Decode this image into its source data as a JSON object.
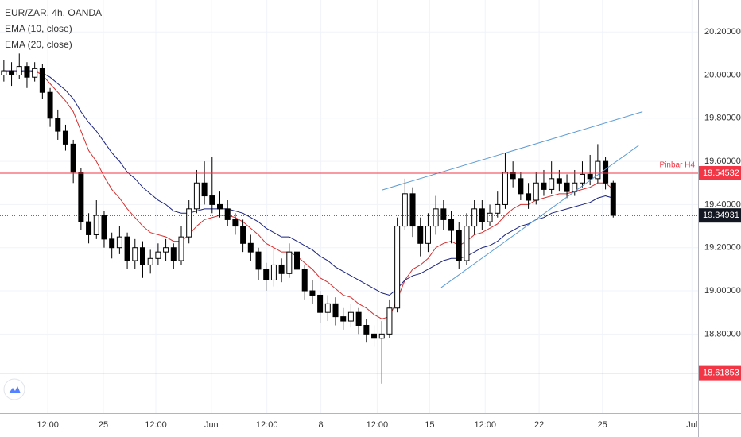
{
  "chart_data": {
    "type": "candlestick",
    "title": "EUR/ZAR, 4h, OANDA",
    "up_color": "#ffffff",
    "down_color": "#000000",
    "outline_color": "#000000",
    "candles": {
      "open": [
        20.0,
        20.02,
        20.0,
        20.04,
        19.99,
        20.03,
        19.92,
        19.8,
        19.74,
        19.68,
        19.55,
        19.32,
        19.26,
        19.35,
        19.24,
        19.2,
        19.25,
        19.14,
        19.2,
        19.12,
        19.15,
        19.18,
        19.2,
        19.14,
        19.25,
        19.38,
        19.5,
        19.44,
        19.4,
        19.38,
        19.33,
        19.3,
        19.22,
        19.18,
        19.1,
        19.05,
        19.12,
        19.08,
        19.18,
        19.1,
        19.0,
        18.98,
        18.9,
        18.94,
        18.88,
        18.86,
        18.9,
        18.84,
        18.8,
        18.78,
        18.8,
        18.92,
        19.3,
        19.45,
        19.3,
        19.22,
        19.3,
        19.38,
        19.33,
        19.28,
        19.14,
        19.3,
        19.38,
        19.32,
        19.36,
        19.4,
        19.55,
        19.52,
        19.45,
        19.42,
        19.5,
        19.47,
        19.52,
        19.5,
        19.46,
        19.5,
        19.54,
        19.52,
        19.6,
        19.5
      ],
      "high": [
        20.07,
        20.06,
        20.1,
        20.06,
        20.06,
        20.05,
        19.94,
        19.84,
        19.77,
        19.7,
        19.57,
        19.36,
        19.42,
        19.37,
        19.27,
        19.3,
        19.27,
        19.24,
        19.23,
        19.19,
        19.22,
        19.24,
        19.22,
        19.3,
        19.42,
        19.56,
        19.6,
        19.62,
        19.46,
        19.42,
        19.36,
        19.33,
        19.26,
        19.2,
        19.13,
        19.2,
        19.15,
        19.22,
        19.2,
        19.12,
        19.05,
        19.0,
        18.98,
        18.97,
        18.92,
        18.94,
        18.92,
        18.87,
        18.84,
        18.86,
        18.96,
        19.34,
        19.52,
        19.48,
        19.34,
        19.36,
        19.44,
        19.42,
        19.37,
        19.32,
        19.36,
        19.42,
        19.42,
        19.4,
        19.46,
        19.64,
        19.6,
        19.55,
        19.5,
        19.55,
        19.56,
        19.6,
        19.56,
        19.54,
        19.56,
        19.6,
        19.63,
        19.68,
        19.62,
        19.51
      ],
      "low": [
        19.97,
        19.95,
        19.98,
        19.94,
        19.97,
        19.89,
        19.76,
        19.7,
        19.65,
        19.5,
        19.28,
        19.22,
        19.24,
        19.2,
        19.15,
        19.17,
        19.1,
        19.1,
        19.06,
        19.08,
        19.12,
        19.14,
        19.1,
        19.12,
        19.22,
        19.36,
        19.4,
        19.36,
        19.34,
        19.3,
        19.26,
        19.18,
        19.14,
        19.05,
        19.0,
        19.02,
        19.04,
        19.06,
        19.06,
        18.96,
        18.94,
        18.85,
        18.86,
        18.84,
        18.82,
        18.83,
        18.8,
        18.76,
        18.74,
        18.57,
        18.78,
        18.9,
        19.28,
        19.25,
        19.16,
        19.18,
        19.26,
        19.28,
        19.22,
        19.1,
        19.12,
        19.26,
        19.28,
        19.3,
        19.34,
        19.38,
        19.48,
        19.42,
        19.38,
        19.4,
        19.44,
        19.45,
        19.46,
        19.43,
        19.44,
        19.48,
        19.49,
        19.5,
        19.47,
        19.34
      ],
      "close": [
        20.02,
        20.0,
        20.04,
        19.99,
        20.03,
        19.92,
        19.8,
        19.74,
        19.68,
        19.55,
        19.32,
        19.26,
        19.35,
        19.24,
        19.2,
        19.25,
        19.14,
        19.2,
        19.12,
        19.15,
        19.18,
        19.2,
        19.14,
        19.25,
        19.38,
        19.5,
        19.44,
        19.4,
        19.38,
        19.33,
        19.3,
        19.22,
        19.18,
        19.1,
        19.05,
        19.12,
        19.08,
        19.18,
        19.1,
        19.0,
        18.98,
        18.9,
        18.94,
        18.88,
        18.86,
        18.9,
        18.84,
        18.8,
        18.78,
        18.8,
        18.92,
        19.3,
        19.45,
        19.3,
        19.22,
        19.3,
        19.38,
        19.33,
        19.28,
        19.14,
        19.3,
        19.38,
        19.32,
        19.36,
        19.4,
        19.55,
        19.52,
        19.45,
        19.42,
        19.5,
        19.47,
        19.52,
        19.5,
        19.46,
        19.5,
        19.54,
        19.52,
        19.6,
        19.5,
        19.35
      ]
    },
    "series": [
      {
        "name": "EMA (10, close)",
        "color": "#d32f2f",
        "values": [
          20.02,
          20.02,
          20.02,
          20.01,
          20.02,
          20.0,
          19.96,
          19.92,
          19.88,
          19.83,
          19.74,
          19.65,
          19.6,
          19.53,
          19.47,
          19.43,
          19.38,
          19.34,
          19.3,
          19.27,
          19.26,
          19.25,
          19.23,
          19.23,
          19.26,
          19.3,
          19.33,
          19.34,
          19.35,
          19.35,
          19.34,
          19.32,
          19.29,
          19.26,
          19.22,
          19.2,
          19.18,
          19.18,
          19.16,
          19.13,
          19.1,
          19.06,
          19.04,
          19.01,
          18.98,
          18.97,
          18.94,
          18.92,
          18.89,
          18.87,
          18.88,
          18.96,
          19.05,
          19.1,
          19.12,
          19.15,
          19.2,
          19.22,
          19.23,
          19.21,
          19.23,
          19.26,
          19.27,
          19.29,
          19.31,
          19.35,
          19.38,
          19.4,
          19.4,
          19.42,
          19.43,
          19.44,
          19.45,
          19.45,
          19.46,
          19.47,
          19.48,
          19.5,
          19.5,
          19.47
        ]
      },
      {
        "name": "EMA (20, close)",
        "color": "#1a237e",
        "values": [
          20.02,
          20.02,
          20.02,
          20.02,
          20.02,
          20.01,
          19.99,
          19.96,
          19.93,
          19.89,
          19.83,
          19.78,
          19.74,
          19.69,
          19.64,
          19.6,
          19.55,
          19.52,
          19.48,
          19.45,
          19.42,
          19.4,
          19.37,
          19.36,
          19.36,
          19.37,
          19.38,
          19.38,
          19.38,
          19.38,
          19.37,
          19.36,
          19.34,
          19.32,
          19.29,
          19.27,
          19.25,
          19.25,
          19.23,
          19.21,
          19.19,
          19.16,
          19.14,
          19.11,
          19.09,
          19.07,
          19.05,
          19.03,
          19.01,
          18.99,
          18.98,
          19.01,
          19.05,
          19.07,
          19.08,
          19.1,
          19.12,
          19.14,
          19.15,
          19.15,
          19.16,
          19.18,
          19.2,
          19.21,
          19.23,
          19.26,
          19.28,
          19.3,
          19.31,
          19.33,
          19.34,
          19.36,
          19.37,
          19.38,
          19.39,
          19.4,
          19.41,
          19.43,
          19.44,
          19.43
        ]
      }
    ],
    "xlim": [
      -0.5,
      90
    ],
    "xticks": [
      {
        "value": 5.7,
        "label": "12:00"
      },
      {
        "value": 12.9,
        "label": "25"
      },
      {
        "value": 19.7,
        "label": "12:00"
      },
      {
        "value": 26.9,
        "label": "Jun"
      },
      {
        "value": 34.1,
        "label": "12:00"
      },
      {
        "value": 41.1,
        "label": "8"
      },
      {
        "value": 48.4,
        "label": "12:00"
      },
      {
        "value": 55.2,
        "label": "15"
      },
      {
        "value": 62.4,
        "label": "12:00"
      },
      {
        "value": 69.4,
        "label": "22"
      },
      {
        "value": 77.6,
        "label": "25"
      },
      {
        "value": 89.2,
        "label": "Jul"
      }
    ],
    "ylim": [
      18.433,
      20.348
    ],
    "yticks": [
      {
        "value": 18.8,
        "label": "18.80000"
      },
      {
        "value": 19.0,
        "label": "19.00000"
      },
      {
        "value": 19.2,
        "label": "19.20000"
      },
      {
        "value": 19.4,
        "label": "19.40000"
      },
      {
        "value": 19.6,
        "label": "19.60000"
      },
      {
        "value": 19.8,
        "label": "19.80000"
      },
      {
        "value": 20.0,
        "label": "20.00000"
      },
      {
        "value": 20.2,
        "label": "20.20000"
      }
    ],
    "hlines": [
      {
        "value": 19.54532,
        "label": "19.54532",
        "color": "#f23645",
        "note": "Pinbar H4"
      },
      {
        "value": 19.34931,
        "label": "19.34931",
        "color": "#131722",
        "dashed": true
      },
      {
        "value": 18.61853,
        "label": "18.61853",
        "color": "#f23645"
      }
    ],
    "trendlines": [
      {
        "color": "#5b9bd5",
        "x": [
          49.0,
          82.8
        ],
        "y": [
          19.467,
          19.83
        ]
      },
      {
        "color": "#5b9bd5",
        "x": [
          56.7,
          82.3
        ],
        "y": [
          19.015,
          19.674
        ]
      }
    ]
  }
}
